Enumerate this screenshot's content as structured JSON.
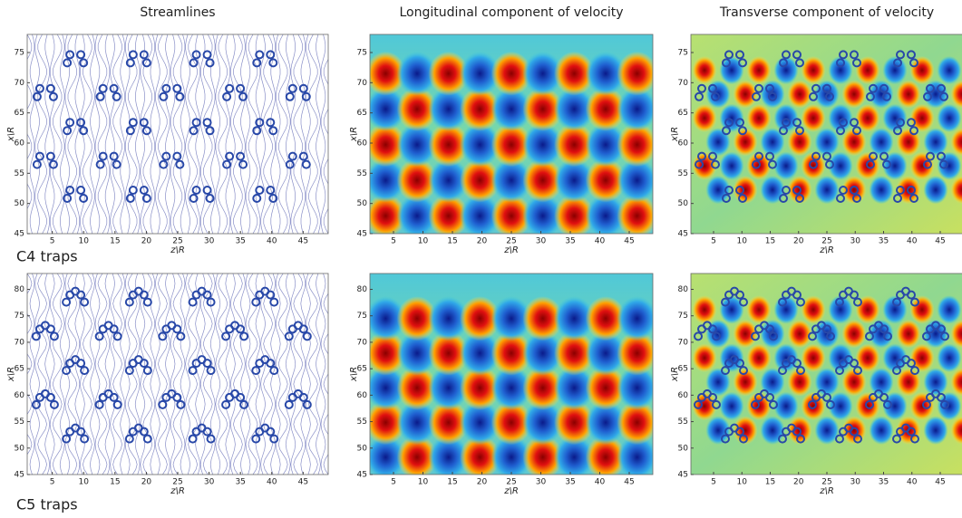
{
  "column_titles": [
    "Streamlines",
    "Longitudinal component of velocity",
    "Transverse component of velocity"
  ],
  "row_labels": [
    "C4 traps",
    "C5 traps"
  ],
  "rows": [
    {
      "xlabel": "z\\R",
      "ylabel": "x\\R",
      "xlim": [
        1,
        49
      ],
      "ylim": [
        45,
        78
      ],
      "xticks": [
        5,
        10,
        15,
        20,
        25,
        30,
        35,
        40,
        45
      ],
      "yticks": [
        45,
        50,
        55,
        60,
        65,
        70,
        75
      ]
    },
    {
      "xlabel": "z\\R",
      "ylabel": "x\\R",
      "xlim": [
        1,
        49
      ],
      "ylim": [
        45,
        83
      ],
      "xticks": [
        5,
        10,
        15,
        20,
        25,
        30,
        35,
        40,
        45
      ],
      "yticks": [
        45,
        50,
        55,
        60,
        65,
        70,
        75,
        80
      ]
    }
  ]
}
